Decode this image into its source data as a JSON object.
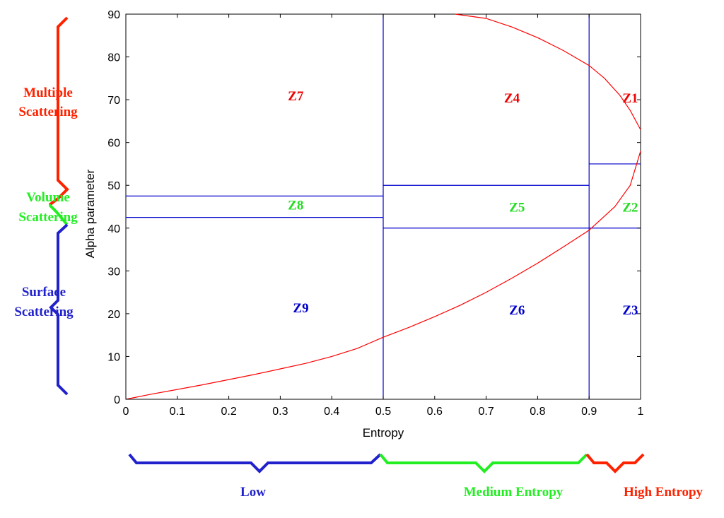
{
  "chart_data": {
    "type": "line",
    "xlabel": "Entropy",
    "ylabel": "Alpha parameter",
    "xlim": [
      0,
      1
    ],
    "ylim": [
      0,
      90
    ],
    "x_ticks": [
      "0",
      "0.1",
      "0.2",
      "0.3",
      "0.4",
      "0.5",
      "0.6",
      "0.7",
      "0.8",
      "0.9",
      "1"
    ],
    "y_ticks": [
      "0",
      "10",
      "20",
      "30",
      "40",
      "50",
      "60",
      "70",
      "80",
      "90"
    ],
    "grid": false,
    "curves": {
      "color": "#ff0000",
      "lower_boundary": [
        [
          0,
          0
        ],
        [
          0.05,
          1.2
        ],
        [
          0.1,
          2.3
        ],
        [
          0.15,
          3.4
        ],
        [
          0.2,
          4.6
        ],
        [
          0.25,
          5.8
        ],
        [
          0.3,
          7.1
        ],
        [
          0.35,
          8.4
        ],
        [
          0.4,
          10.0
        ],
        [
          0.45,
          11.9
        ],
        [
          0.5,
          14.5
        ],
        [
          0.55,
          16.8
        ],
        [
          0.6,
          19.3
        ],
        [
          0.65,
          22.0
        ],
        [
          0.7,
          25.0
        ],
        [
          0.75,
          28.3
        ],
        [
          0.8,
          31.8
        ],
        [
          0.85,
          35.6
        ],
        [
          0.9,
          39.5
        ],
        [
          0.95,
          45.0
        ],
        [
          0.98,
          50.0
        ],
        [
          1.0,
          58.0
        ]
      ],
      "upper_boundary": [
        [
          0.64,
          90.0
        ],
        [
          0.7,
          89.0
        ],
        [
          0.75,
          87.0
        ],
        [
          0.8,
          84.5
        ],
        [
          0.85,
          81.5
        ],
        [
          0.9,
          78.0
        ],
        [
          0.93,
          75.0
        ],
        [
          0.96,
          71.0
        ],
        [
          0.98,
          67.5
        ],
        [
          1.0,
          63.0
        ]
      ]
    },
    "zone_boundaries": {
      "color": "#0000cc",
      "vertical": [
        {
          "x": 0.5,
          "y": [
            0,
            90
          ]
        },
        {
          "x": 0.9,
          "y": [
            0,
            90
          ]
        }
      ],
      "horizontal": [
        {
          "y": 47.5,
          "x": [
            0,
            0.5
          ]
        },
        {
          "y": 42.5,
          "x": [
            0,
            0.5
          ]
        },
        {
          "y": 50,
          "x": [
            0.5,
            0.9
          ]
        },
        {
          "y": 40,
          "x": [
            0.5,
            1.0
          ]
        },
        {
          "y": 55,
          "x": [
            0.9,
            1.0
          ]
        }
      ]
    },
    "zones": [
      {
        "label": "Z7",
        "x": 0.33,
        "y": 71,
        "color": "#ee0000"
      },
      {
        "label": "Z4",
        "x": 0.75,
        "y": 70.5,
        "color": "#ee0000"
      },
      {
        "label": "Z1",
        "x": 0.98,
        "y": 70.5,
        "color": "#ee0000"
      },
      {
        "label": "Z8",
        "x": 0.33,
        "y": 45.5,
        "color": "#22dd22"
      },
      {
        "label": "Z5",
        "x": 0.76,
        "y": 45,
        "color": "#22dd22"
      },
      {
        "label": "Z2",
        "x": 0.98,
        "y": 45,
        "color": "#22dd22"
      },
      {
        "label": "Z9",
        "x": 0.34,
        "y": 21.5,
        "color": "#0000cc"
      },
      {
        "label": "Z6",
        "x": 0.76,
        "y": 21,
        "color": "#0000cc"
      },
      {
        "label": "Z3",
        "x": 0.98,
        "y": 21,
        "color": "#0000cc"
      }
    ]
  },
  "side_labels": {
    "multiple_scattering": [
      "Multiple",
      "Scattering"
    ],
    "volume_scattering": [
      "Volume",
      "Scattering"
    ],
    "surface_scattering": [
      "Surface",
      "Scattering"
    ]
  },
  "bottom_labels": {
    "low": "Low",
    "medium": "Medium Entropy",
    "high": "High Entropy"
  },
  "colors": {
    "red": "#ff2200",
    "green": "#22ee22",
    "blue": "#2222cc"
  }
}
